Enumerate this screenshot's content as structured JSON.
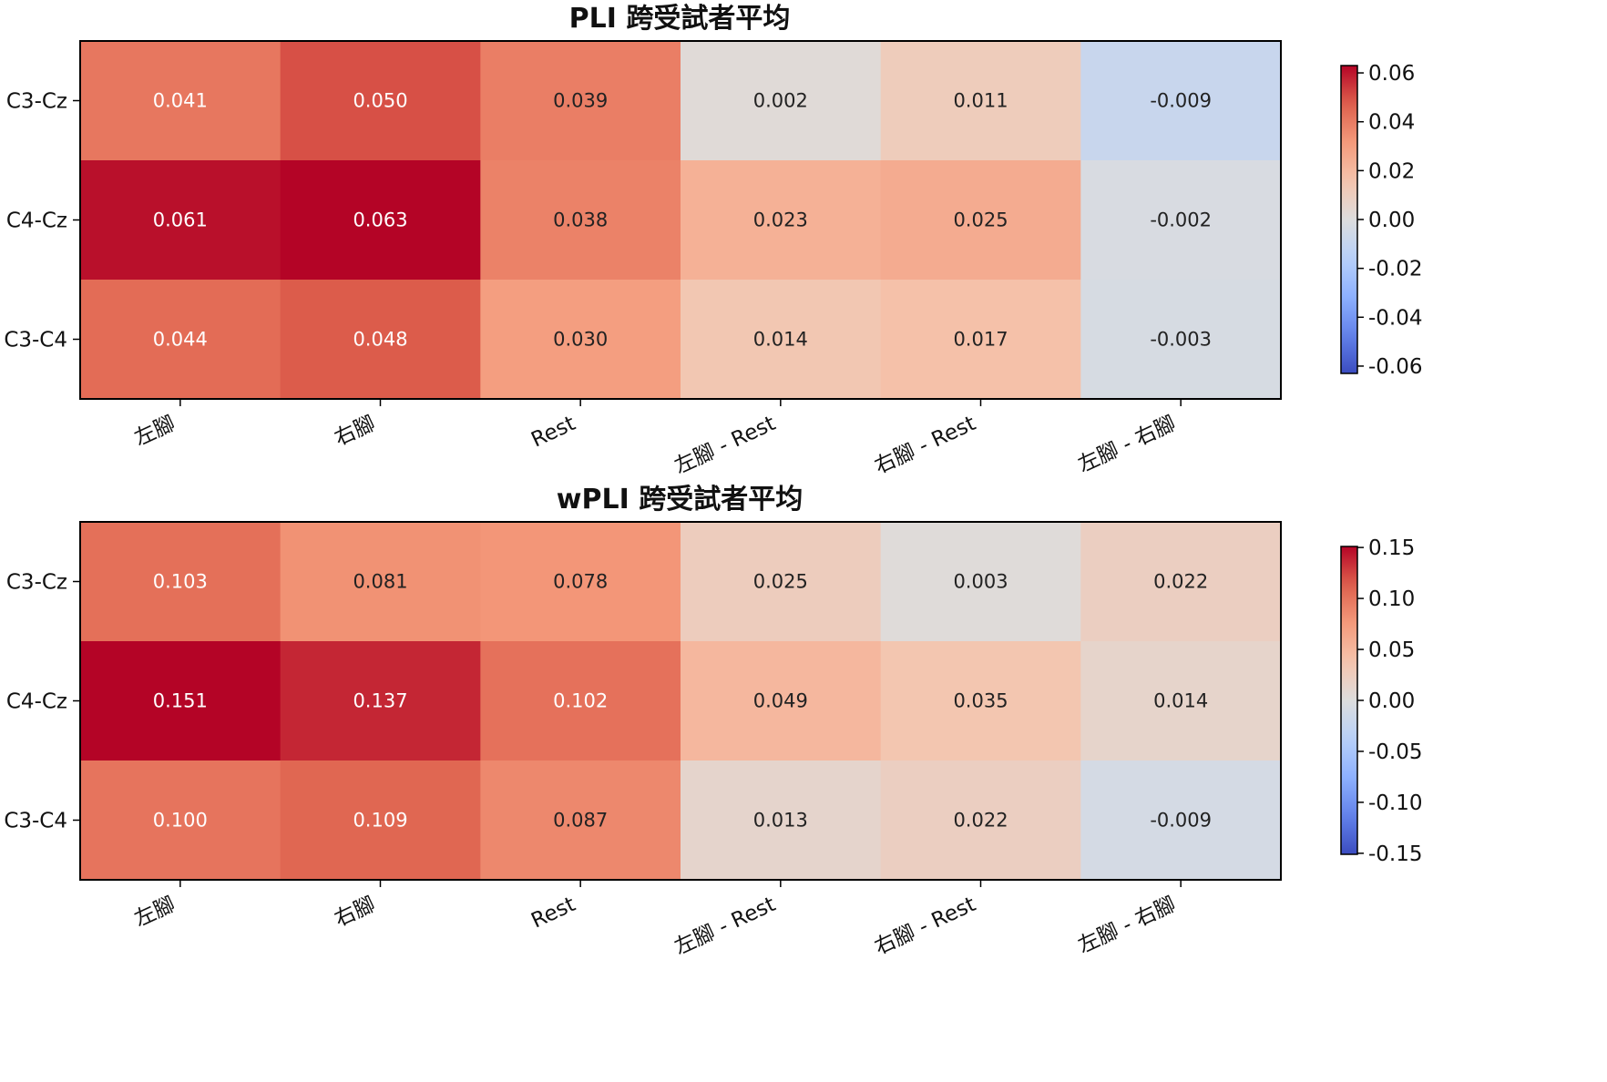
{
  "chart_data": [
    {
      "type": "heatmap",
      "title": "PLI 跨受試者平均",
      "rows": [
        "C3-Cz",
        "C4-Cz",
        "C3-C4"
      ],
      "columns": [
        "左腳",
        "右腳",
        "Rest",
        "左腳 - Rest",
        "右腳 - Rest",
        "左腳 - 右腳"
      ],
      "values": [
        [
          0.041,
          0.05,
          0.039,
          0.002,
          0.011,
          -0.009
        ],
        [
          0.061,
          0.063,
          0.038,
          0.023,
          0.025,
          -0.002
        ],
        [
          0.044,
          0.048,
          0.03,
          0.014,
          0.017,
          -0.003
        ]
      ],
      "value_labels": [
        [
          "0.041",
          "0.050",
          "0.039",
          "0.002",
          "0.011",
          "-0.009"
        ],
        [
          "0.061",
          "0.063",
          "0.038",
          "0.023",
          "0.025",
          "-0.002"
        ],
        [
          "0.044",
          "0.048",
          "0.030",
          "0.014",
          "0.017",
          "-0.003"
        ]
      ],
      "colormap": "coolwarm",
      "vlim": [
        -0.063,
        0.063
      ],
      "colorbar_ticks": [
        0.06,
        0.04,
        0.02,
        0.0,
        -0.02,
        -0.04,
        -0.06
      ],
      "colorbar_tick_labels": [
        "0.06",
        "0.04",
        "0.02",
        "0.00",
        "-0.02",
        "-0.04",
        "-0.06"
      ]
    },
    {
      "type": "heatmap",
      "title": "wPLI 跨受試者平均",
      "rows": [
        "C3-Cz",
        "C4-Cz",
        "C3-C4"
      ],
      "columns": [
        "左腳",
        "右腳",
        "Rest",
        "左腳 - Rest",
        "右腳 - Rest",
        "左腳 - 右腳"
      ],
      "values": [
        [
          0.103,
          0.081,
          0.078,
          0.025,
          0.003,
          0.022
        ],
        [
          0.151,
          0.137,
          0.102,
          0.049,
          0.035,
          0.014
        ],
        [
          0.1,
          0.109,
          0.087,
          0.013,
          0.022,
          -0.009
        ]
      ],
      "value_labels": [
        [
          "0.103",
          "0.081",
          "0.078",
          "0.025",
          "0.003",
          "0.022"
        ],
        [
          "0.151",
          "0.137",
          "0.102",
          "0.049",
          "0.035",
          "0.014"
        ],
        [
          "0.100",
          "0.109",
          "0.087",
          "0.013",
          "0.022",
          "-0.009"
        ]
      ],
      "colormap": "coolwarm",
      "vlim": [
        -0.151,
        0.151
      ],
      "colorbar_ticks": [
        0.15,
        0.1,
        0.05,
        0.0,
        -0.05,
        -0.1,
        -0.15
      ],
      "colorbar_tick_labels": [
        "0.15",
        "0.10",
        "0.05",
        "0.00",
        "-0.05",
        "-0.10",
        "-0.15"
      ]
    }
  ]
}
